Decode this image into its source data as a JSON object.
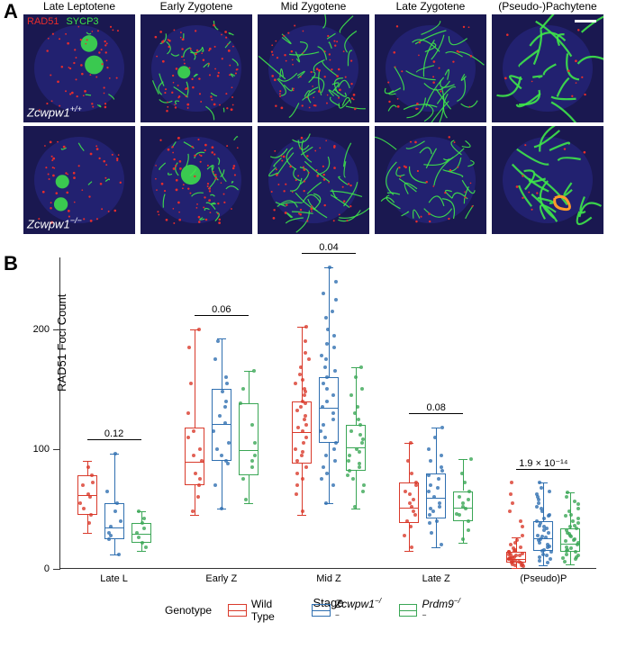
{
  "panelA": {
    "label": "A",
    "markerLegend": {
      "rad51": "RAD51",
      "sycp3": "SYCP3"
    },
    "stages": [
      "Late Leptotene",
      "Early Zygotene",
      "Mid Zygotene",
      "Late Zygotene",
      "(Pseudo-)Pachytene"
    ],
    "rows": [
      {
        "genotype_html": "Zcwpw1<sup>+/+</sup>"
      },
      {
        "genotype_html": "Zcwpw1<sup>−/−</sup>"
      }
    ],
    "colors": {
      "background": "#1a1850",
      "sycp3": "#3ee64a",
      "rad51": "#e82c2c",
      "dapi": "#2a2a8a"
    }
  },
  "panelB": {
    "label": "B",
    "ylabel": "RAD51 Foci Count",
    "xlabel": "Stage",
    "ylim": [
      0,
      260
    ],
    "yticks": [
      0,
      100,
      200
    ],
    "stages": [
      {
        "key": "LateL",
        "label": "Late L",
        "pval": "0.12"
      },
      {
        "key": "EarlyZ",
        "label": "Early Z",
        "pval": "0.06"
      },
      {
        "key": "MidZ",
        "label": "Mid Z",
        "pval": "0.04"
      },
      {
        "key": "LateZ",
        "label": "Late Z",
        "pval": "0.08"
      },
      {
        "key": "PseudoP",
        "label": "(Pseudo)P",
        "pval": "1.9 × 10⁻¹⁴"
      }
    ],
    "genotypes": [
      {
        "key": "wt",
        "label_html": "Wild Type",
        "color": "#d93a2b"
      },
      {
        "key": "zcw",
        "label_html": "<span class=\"italic\">Zcwpw1<sup>−/−</sup></span>",
        "color": "#2f6fb0"
      },
      {
        "key": "prdm",
        "label_html": "<span class=\"italic\">Prdm9<sup>−/−</sup></span>",
        "color": "#3aa655"
      }
    ],
    "legend_title": "Genotype",
    "data": {
      "LateL": {
        "wt": {
          "q1": 45,
          "median": 62,
          "q3": 78,
          "lo": 30,
          "hi": 90,
          "points": [
            38,
            45,
            50,
            60,
            62,
            70,
            78,
            85,
            72,
            55
          ]
        },
        "zcw": {
          "q1": 25,
          "median": 35,
          "q3": 55,
          "lo": 12,
          "hi": 96,
          "points": [
            12,
            25,
            30,
            35,
            40,
            48,
            55,
            65,
            96,
            28
          ]
        },
        "prdm": {
          "q1": 22,
          "median": 30,
          "q3": 38,
          "lo": 15,
          "hi": 48,
          "points": [
            18,
            22,
            26,
            30,
            34,
            38,
            42,
            48
          ]
        }
      },
      "EarlyZ": {
        "wt": {
          "q1": 70,
          "median": 90,
          "q3": 118,
          "lo": 45,
          "hi": 200,
          "points": [
            48,
            60,
            70,
            80,
            90,
            100,
            115,
            130,
            155,
            200,
            185,
            95,
            110,
            75
          ]
        },
        "zcw": {
          "q1": 90,
          "median": 122,
          "q3": 150,
          "lo": 50,
          "hi": 192,
          "points": [
            50,
            70,
            90,
            100,
            115,
            122,
            135,
            148,
            160,
            175,
            190,
            105,
            128,
            140,
            88,
            95,
            155
          ]
        },
        "prdm": {
          "q1": 78,
          "median": 100,
          "q3": 138,
          "lo": 55,
          "hi": 165,
          "points": [
            58,
            75,
            85,
            95,
            105,
            120,
            138,
            150,
            165,
            90
          ]
        }
      },
      "MidZ": {
        "wt": {
          "q1": 88,
          "median": 115,
          "q3": 140,
          "lo": 45,
          "hi": 202,
          "points": [
            48,
            62,
            75,
            85,
            90,
            100,
            110,
            115,
            120,
            128,
            135,
            140,
            150,
            162,
            175,
            190,
            202,
            95,
            105,
            118,
            132,
            145,
            158,
            80,
            70,
            125,
            138,
            148,
            155,
            168,
            180,
            98
          ]
        },
        "zcw": {
          "q1": 105,
          "median": 135,
          "q3": 160,
          "lo": 55,
          "hi": 252,
          "points": [
            55,
            70,
            85,
            95,
            105,
            115,
            125,
            135,
            140,
            150,
            160,
            168,
            175,
            185,
            195,
            210,
            230,
            252,
            90,
            100,
            110,
            120,
            130,
            145,
            155,
            165,
            178,
            188,
            200,
            215,
            225,
            240,
            80,
            75
          ]
        },
        "prdm": {
          "q1": 82,
          "median": 102,
          "q3": 120,
          "lo": 50,
          "hi": 168,
          "points": [
            52,
            65,
            75,
            82,
            90,
            100,
            108,
            115,
            120,
            130,
            145,
            160,
            168,
            85,
            95,
            105,
            112,
            125,
            135,
            150,
            70,
            78,
            88,
            98
          ]
        }
      },
      "LateZ": {
        "wt": {
          "q1": 38,
          "median": 52,
          "q3": 72,
          "lo": 15,
          "hi": 105,
          "points": [
            18,
            28,
            35,
            40,
            48,
            52,
            58,
            65,
            72,
            80,
            90,
            105,
            45,
            55,
            62,
            70
          ]
        },
        "zcw": {
          "q1": 42,
          "median": 60,
          "q3": 80,
          "lo": 18,
          "hi": 118,
          "points": [
            20,
            30,
            38,
            45,
            52,
            60,
            68,
            75,
            82,
            90,
            100,
            118,
            48,
            55,
            65,
            78,
            85,
            40,
            50,
            70,
            95,
            110
          ]
        },
        "prdm": {
          "q1": 40,
          "median": 52,
          "q3": 65,
          "lo": 22,
          "hi": 92,
          "points": [
            25,
            32,
            40,
            46,
            52,
            58,
            65,
            72,
            80,
            92,
            45,
            50,
            55,
            60
          ]
        }
      },
      "PseudoP": {
        "wt": {
          "q1": 5,
          "median": 9,
          "q3": 14,
          "lo": 1,
          "hi": 26,
          "points": [
            2,
            3,
            4,
            5,
            6,
            7,
            8,
            9,
            10,
            11,
            12,
            14,
            16,
            18,
            20,
            24,
            40,
            55,
            72,
            5,
            8,
            11,
            13,
            15,
            6,
            7,
            9,
            12,
            3,
            4,
            10,
            14,
            17,
            22,
            28,
            35,
            48,
            62
          ]
        },
        "zcw": {
          "q1": 15,
          "median": 26,
          "q3": 40,
          "lo": 3,
          "hi": 72,
          "points": [
            5,
            8,
            12,
            15,
            18,
            22,
            26,
            30,
            35,
            40,
            45,
            50,
            55,
            62,
            72,
            10,
            14,
            20,
            24,
            28,
            32,
            38,
            44,
            52,
            60,
            68,
            16,
            25,
            34,
            42,
            48,
            58,
            65,
            7,
            11,
            19,
            27,
            36
          ]
        },
        "prdm": {
          "q1": 14,
          "median": 22,
          "q3": 34,
          "lo": 4,
          "hi": 64,
          "points": [
            6,
            9,
            12,
            15,
            18,
            22,
            25,
            28,
            32,
            36,
            40,
            45,
            50,
            56,
            64,
            8,
            11,
            14,
            17,
            20,
            24,
            27,
            30,
            34,
            38,
            42,
            48,
            54,
            60,
            10,
            16,
            23,
            29,
            35,
            44
          ]
        }
      }
    }
  }
}
